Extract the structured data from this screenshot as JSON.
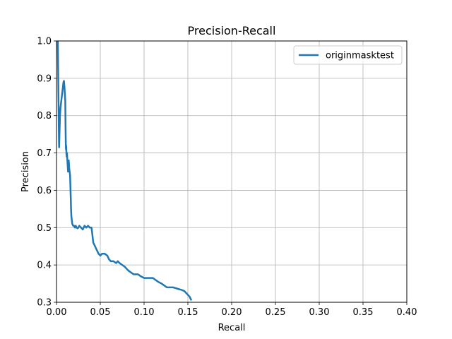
{
  "chart_data": {
    "type": "line",
    "title": "Precision-Recall",
    "xlabel": "Recall",
    "ylabel": "Precision",
    "xlim": [
      0.0,
      0.4
    ],
    "ylim": [
      0.3,
      1.0
    ],
    "xticks": [
      "0.00",
      "0.05",
      "0.10",
      "0.15",
      "0.20",
      "0.25",
      "0.30",
      "0.35",
      "0.40"
    ],
    "yticks": [
      "0.3",
      "0.4",
      "0.5",
      "0.6",
      "0.7",
      "0.8",
      "0.9",
      "1.0"
    ],
    "grid": true,
    "legend_position": "top-right",
    "series": [
      {
        "name": "originmasktest",
        "color": "#1f77b4",
        "x": [
          0.0015,
          0.0016,
          0.0018,
          0.002,
          0.0022,
          0.0024,
          0.0026,
          0.0028,
          0.003,
          0.0035,
          0.004,
          0.0045,
          0.005,
          0.0055,
          0.006,
          0.0065,
          0.007,
          0.0075,
          0.008,
          0.0085,
          0.009,
          0.0095,
          0.01,
          0.0102,
          0.0104,
          0.0106,
          0.0108,
          0.011,
          0.0113,
          0.0116,
          0.012,
          0.0124,
          0.0128,
          0.0132,
          0.0136,
          0.014,
          0.0145,
          0.015,
          0.0155,
          0.016,
          0.0163,
          0.0166,
          0.017,
          0.0175,
          0.018,
          0.019,
          0.02,
          0.021,
          0.022,
          0.023,
          0.024,
          0.025,
          0.026,
          0.028,
          0.03,
          0.032,
          0.034,
          0.036,
          0.038,
          0.04,
          0.041,
          0.042,
          0.044,
          0.046,
          0.048,
          0.05,
          0.052,
          0.055,
          0.058,
          0.06,
          0.062,
          0.065,
          0.068,
          0.07,
          0.072,
          0.075,
          0.078,
          0.08,
          0.082,
          0.085,
          0.088,
          0.09,
          0.093,
          0.096,
          0.1,
          0.102,
          0.105,
          0.108,
          0.11,
          0.113,
          0.116,
          0.12,
          0.123,
          0.126,
          0.13,
          0.133,
          0.136,
          0.14,
          0.143,
          0.146,
          0.148,
          0.15,
          0.152,
          0.154
        ],
        "y": [
          1.0,
          0.98,
          0.94,
          0.9,
          0.86,
          0.82,
          0.78,
          0.74,
          0.715,
          0.76,
          0.8,
          0.82,
          0.83,
          0.84,
          0.85,
          0.86,
          0.87,
          0.88,
          0.89,
          0.893,
          0.88,
          0.86,
          0.84,
          0.8,
          0.76,
          0.73,
          0.71,
          0.72,
          0.7,
          0.69,
          0.7,
          0.68,
          0.665,
          0.65,
          0.67,
          0.68,
          0.66,
          0.65,
          0.64,
          0.6,
          0.58,
          0.55,
          0.53,
          0.52,
          0.51,
          0.505,
          0.505,
          0.5,
          0.505,
          0.5,
          0.498,
          0.5,
          0.505,
          0.5,
          0.495,
          0.505,
          0.5,
          0.505,
          0.5,
          0.5,
          0.48,
          0.46,
          0.45,
          0.44,
          0.43,
          0.425,
          0.43,
          0.43,
          0.425,
          0.415,
          0.41,
          0.41,
          0.405,
          0.41,
          0.405,
          0.4,
          0.395,
          0.39,
          0.385,
          0.38,
          0.375,
          0.375,
          0.375,
          0.37,
          0.365,
          0.365,
          0.365,
          0.365,
          0.365,
          0.36,
          0.355,
          0.35,
          0.345,
          0.34,
          0.34,
          0.34,
          0.338,
          0.335,
          0.333,
          0.33,
          0.325,
          0.32,
          0.315,
          0.305
        ]
      }
    ]
  }
}
